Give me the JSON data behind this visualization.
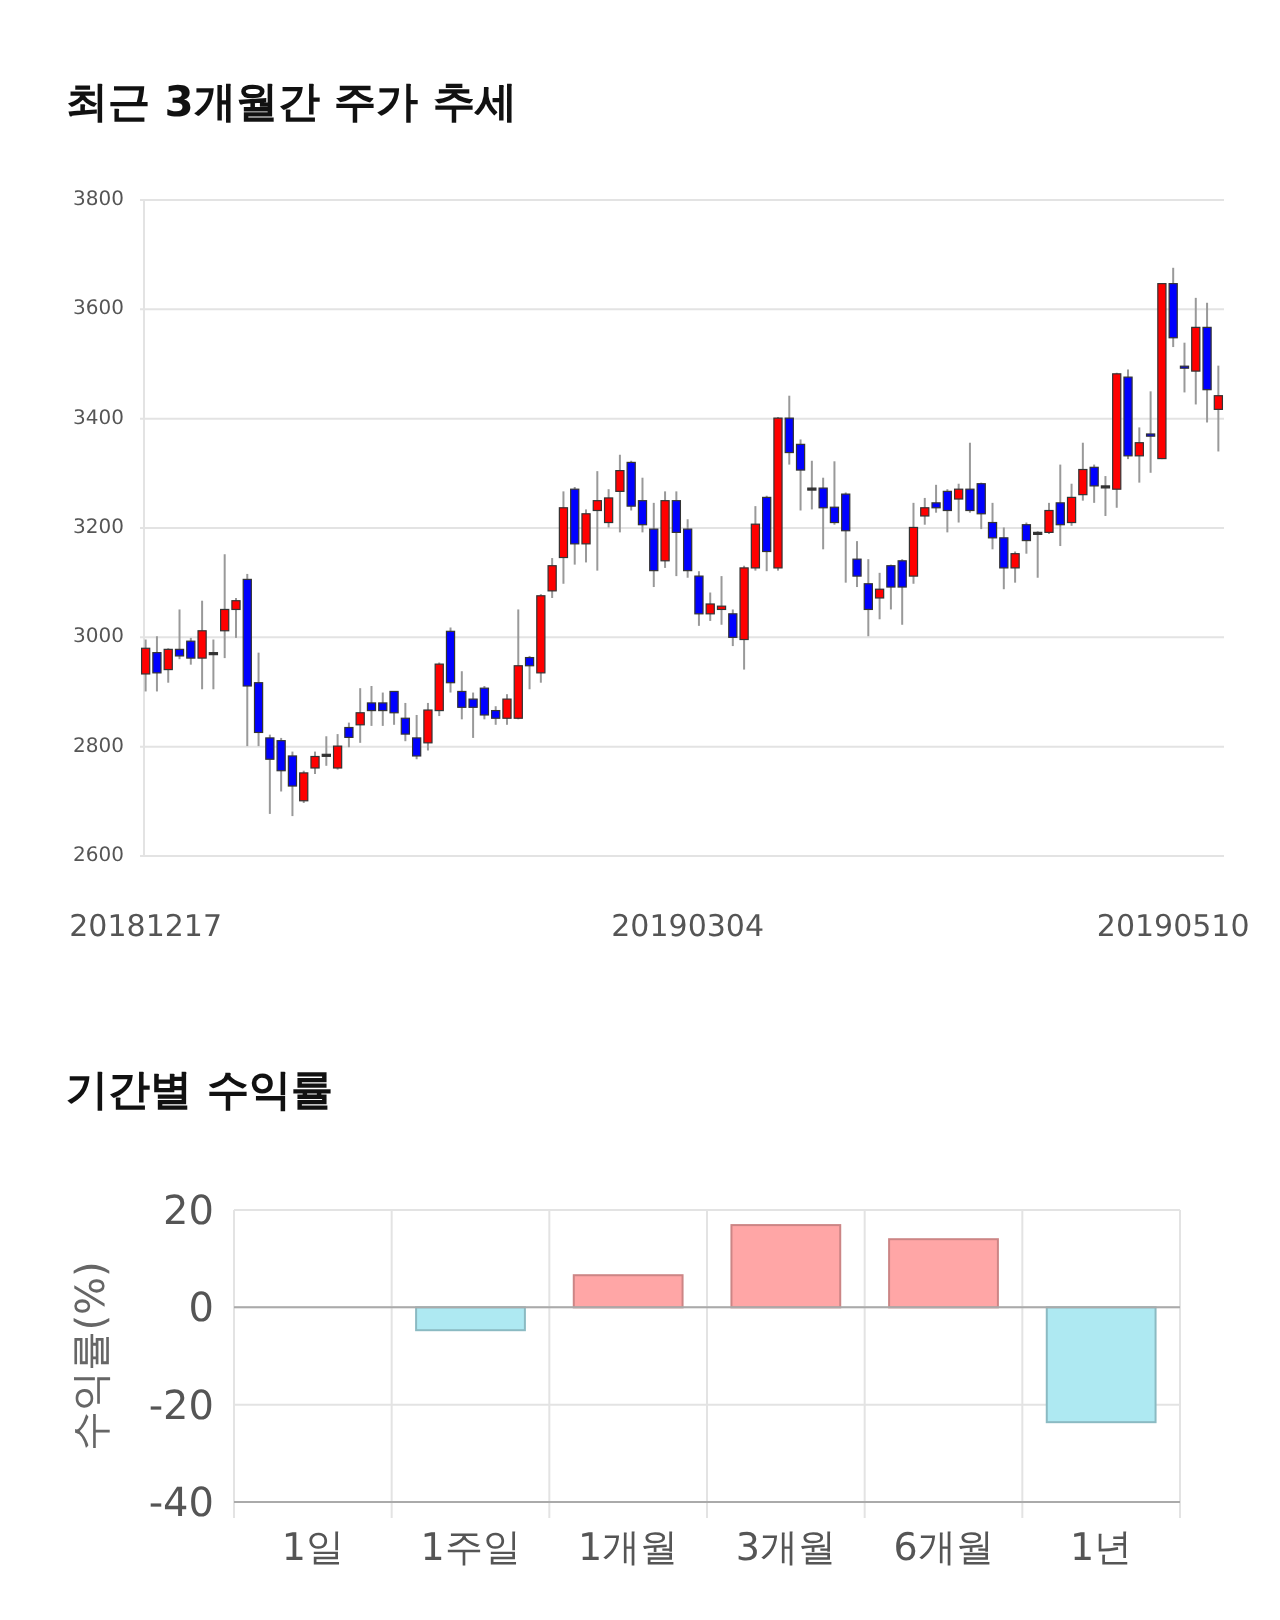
{
  "chart_data": [
    {
      "type": "candlestick",
      "title": "최근 3개월간 주가 추세",
      "categories": [
        "20181217",
        null,
        null,
        null,
        null,
        null,
        null,
        null,
        null,
        null,
        null,
        null,
        null,
        null,
        null,
        null,
        null,
        null,
        null,
        null,
        null,
        null,
        null,
        null,
        null,
        null,
        null,
        null,
        null,
        null,
        null,
        null,
        null,
        null,
        null,
        null,
        null,
        null,
        null,
        null,
        null,
        null,
        null,
        null,
        null,
        null,
        null,
        null,
        "20190304",
        null,
        null,
        null,
        null,
        null,
        null,
        null,
        null,
        null,
        null,
        null,
        null,
        null,
        null,
        null,
        null,
        null,
        null,
        null,
        null,
        null,
        null,
        null,
        null,
        null,
        null,
        null,
        null,
        null,
        null,
        null,
        null,
        null,
        null,
        null,
        null,
        null,
        null,
        null,
        null,
        null,
        null,
        "20190510",
        null,
        null,
        null,
        null
      ],
      "ohlc": [
        [
          2933,
          2996,
          2901,
          2980
        ],
        [
          2972,
          3002,
          2901,
          2935
        ],
        [
          2941,
          2980,
          2917,
          2978
        ],
        [
          2978,
          3051,
          2960,
          2966
        ],
        [
          2993,
          2999,
          2950,
          2962
        ],
        [
          2962,
          3067,
          2905,
          3012
        ],
        [
          2972,
          2996,
          2905,
          2972
        ],
        [
          3012,
          3152,
          2962,
          3051
        ],
        [
          3051,
          3072,
          2999,
          3067
        ],
        [
          3106,
          3116,
          2801,
          2911
        ],
        [
          2917,
          2972,
          2801,
          2826
        ],
        [
          2816,
          2822,
          2677,
          2777
        ],
        [
          2811,
          2816,
          2718,
          2756
        ],
        [
          2783,
          2791,
          2673,
          2728
        ],
        [
          2701,
          2756,
          2697,
          2752
        ],
        [
          2761,
          2791,
          2750,
          2782
        ],
        [
          2786,
          2819,
          2765,
          2786
        ],
        [
          2761,
          2823,
          2758,
          2801
        ],
        [
          2835,
          2844,
          2799,
          2817
        ],
        [
          2840,
          2907,
          2807,
          2862
        ],
        [
          2880,
          2911,
          2838,
          2866
        ],
        [
          2880,
          2899,
          2838,
          2866
        ],
        [
          2901,
          2901,
          2840,
          2862
        ],
        [
          2852,
          2880,
          2810,
          2823
        ],
        [
          2816,
          2858,
          2777,
          2783
        ],
        [
          2807,
          2880,
          2793,
          2867
        ],
        [
          2866,
          2954,
          2856,
          2951
        ],
        [
          3011,
          3018,
          2899,
          2917
        ],
        [
          2901,
          2938,
          2850,
          2872
        ],
        [
          2887,
          2899,
          2816,
          2872
        ],
        [
          2907,
          2911,
          2850,
          2858
        ],
        [
          2866,
          2874,
          2840,
          2852
        ],
        [
          2852,
          2896,
          2840,
          2887
        ],
        [
          2852,
          3051,
          2850,
          2948
        ],
        [
          2963,
          2966,
          2905,
          2948
        ],
        [
          2935,
          3079,
          2917,
          3076
        ],
        [
          3085,
          3145,
          3072,
          3131
        ],
        [
          3146,
          3267,
          3098,
          3237
        ],
        [
          3271,
          3275,
          3133,
          3171
        ],
        [
          3171,
          3234,
          3137,
          3226
        ],
        [
          3232,
          3304,
          3122,
          3250
        ],
        [
          3210,
          3271,
          3201,
          3255
        ],
        [
          3267,
          3334,
          3192,
          3305
        ],
        [
          3320,
          3323,
          3232,
          3240
        ],
        [
          3250,
          3292,
          3192,
          3206
        ],
        [
          3198,
          3246,
          3092,
          3122
        ],
        [
          3140,
          3267,
          3127,
          3250
        ],
        [
          3250,
          3267,
          3112,
          3192
        ],
        [
          3198,
          3216,
          3109,
          3122
        ],
        [
          3112,
          3121,
          3021,
          3043
        ],
        [
          3043,
          3082,
          3030,
          3061
        ],
        [
          3051,
          3112,
          3023,
          3057
        ],
        [
          3043,
          3051,
          2984,
          3000
        ],
        [
          2996,
          3131,
          2941,
          3127
        ],
        [
          3127,
          3240,
          3122,
          3207
        ],
        [
          3256,
          3259,
          3121,
          3157
        ],
        [
          3127,
          3403,
          3122,
          3401
        ],
        [
          3401,
          3442,
          3316,
          3338
        ],
        [
          3353,
          3362,
          3232,
          3306
        ],
        [
          3273,
          3323,
          3234,
          3273
        ],
        [
          3273,
          3292,
          3161,
          3237
        ],
        [
          3238,
          3322,
          3206,
          3210
        ],
        [
          3262,
          3265,
          3100,
          3195
        ],
        [
          3143,
          3176,
          3092,
          3112
        ],
        [
          3098,
          3143,
          3002,
          3051
        ],
        [
          3072,
          3118,
          3033,
          3088
        ],
        [
          3131,
          3133,
          3051,
          3092
        ],
        [
          3140,
          3143,
          3023,
          3092
        ],
        [
          3112,
          3246,
          3098,
          3201
        ],
        [
          3222,
          3255,
          3206,
          3237
        ],
        [
          3246,
          3279,
          3228,
          3237
        ],
        [
          3267,
          3271,
          3192,
          3232
        ],
        [
          3253,
          3281,
          3210,
          3271
        ],
        [
          3271,
          3356,
          3228,
          3232
        ],
        [
          3281,
          3283,
          3198,
          3226
        ],
        [
          3210,
          3246,
          3161,
          3182
        ],
        [
          3182,
          3201,
          3088,
          3127
        ],
        [
          3127,
          3157,
          3100,
          3153
        ],
        [
          3206,
          3210,
          3153,
          3177
        ],
        [
          3192,
          3194,
          3109,
          3192
        ],
        [
          3192,
          3246,
          3189,
          3232
        ],
        [
          3246,
          3316,
          3167,
          3206
        ],
        [
          3210,
          3281,
          3204,
          3256
        ],
        [
          3261,
          3356,
          3250,
          3307
        ],
        [
          3311,
          3316,
          3246,
          3277
        ],
        [
          3277,
          3295,
          3222,
          3277
        ],
        [
          3271,
          3484,
          3237,
          3482
        ],
        [
          3476,
          3490,
          3326,
          3332
        ],
        [
          3332,
          3384,
          3283,
          3356
        ],
        [
          3372,
          3450,
          3301,
          3368
        ],
        [
          3327,
          3647,
          3326,
          3647
        ],
        [
          3647,
          3676,
          3531,
          3548
        ],
        [
          3496,
          3539,
          3448,
          3493
        ],
        [
          3487,
          3621,
          3426,
          3567
        ],
        [
          3567,
          3612,
          3393,
          3453
        ],
        [
          3417,
          3497,
          3340,
          3442
        ]
      ],
      "colors": [
        "#ff0000",
        "#0000ff",
        "#ff0000",
        "#0000ff",
        "#0000ff",
        "#ff0000",
        "#333333",
        "#ff0000",
        "#ff0000",
        "#0000ff",
        "#0000ff",
        "#0000ff",
        "#0000ff",
        "#0000ff",
        "#ff0000",
        "#ff0000",
        "#333333",
        "#ff0000",
        "#0000ff",
        "#ff0000",
        "#0000ff",
        "#0000ff",
        "#0000ff",
        "#0000ff",
        "#0000ff",
        "#ff0000",
        "#ff0000",
        "#0000ff",
        "#0000ff",
        "#0000ff",
        "#0000ff",
        "#0000ff",
        "#ff0000",
        "#ff0000",
        "#0000ff",
        "#ff0000",
        "#ff0000",
        "#ff0000",
        "#0000ff",
        "#ff0000",
        "#ff0000",
        "#ff0000",
        "#ff0000",
        "#0000ff",
        "#0000ff",
        "#0000ff",
        "#ff0000",
        "#0000ff",
        "#0000ff",
        "#0000ff",
        "#ff0000",
        "#ff0000",
        "#0000ff",
        "#ff0000",
        "#ff0000",
        "#0000ff",
        "#ff0000",
        "#0000ff",
        "#0000ff",
        "#333333",
        "#0000ff",
        "#0000ff",
        "#0000ff",
        "#0000ff",
        "#0000ff",
        "#ff0000",
        "#0000ff",
        "#0000ff",
        "#ff0000",
        "#ff0000",
        "#0000ff",
        "#0000ff",
        "#ff0000",
        "#0000ff",
        "#0000ff",
        "#0000ff",
        "#0000ff",
        "#ff0000",
        "#0000ff",
        "#333333",
        "#ff0000",
        "#0000ff",
        "#ff0000",
        "#ff0000",
        "#0000ff",
        "#333333",
        "#ff0000",
        "#0000ff",
        "#ff0000",
        "#0000ff",
        "#ff0000",
        "#0000ff",
        "#0000ff",
        "#ff0000",
        "#0000ff",
        "#ff0000"
      ],
      "ylim": [
        2600,
        3800
      ],
      "yticks": [
        2600,
        2800,
        3000,
        3200,
        3400,
        3600,
        3800
      ],
      "grid": "y"
    },
    {
      "type": "bar",
      "title": "기간별 수익률",
      "ylabel": "수익률(%)",
      "categories": [
        "1일",
        "1주일",
        "1개월",
        "3개월",
        "6개월",
        "1년"
      ],
      "values": [
        0,
        -4.7,
        6.6,
        16.9,
        14.0,
        -23.6
      ],
      "colors": [
        "#ffa6a6",
        "#aee9f2",
        "#ffa6a6",
        "#ffa6a6",
        "#ffa6a6",
        "#aee9f2"
      ],
      "ylim": [
        -40,
        20
      ],
      "yticks": [
        -40,
        -20,
        0,
        20
      ],
      "grid": true
    }
  ]
}
